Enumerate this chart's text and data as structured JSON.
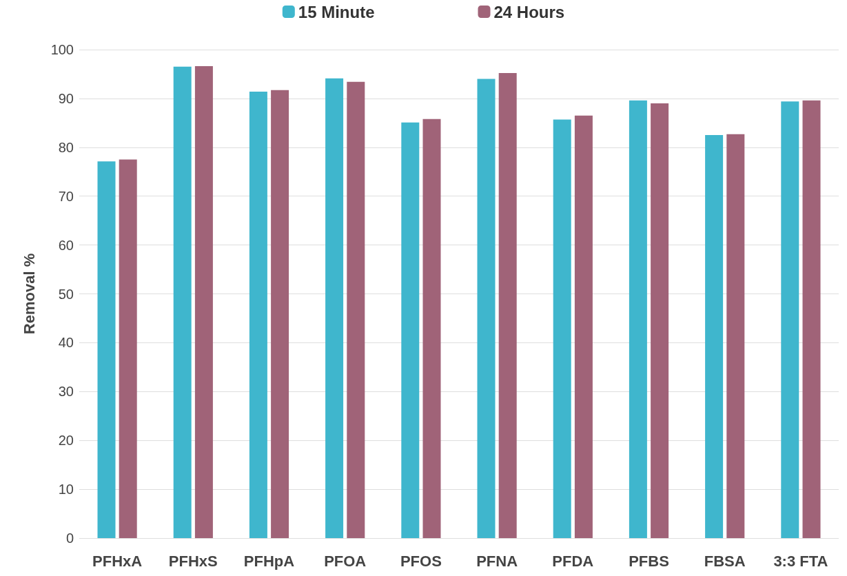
{
  "chart_data": {
    "type": "bar",
    "ylabel": "Removal %",
    "categories": [
      "PFHxA",
      "PFHxS",
      "PFHpA",
      "PFOA",
      "PFOS",
      "PFNA",
      "PFDA",
      "PFBS",
      "FBSA",
      "3:3 FTA"
    ],
    "series": [
      {
        "name": "15 Minute",
        "color": "#3fb6cd",
        "values": [
          77.1,
          96.5,
          91.4,
          94.1,
          85.1,
          94.0,
          85.7,
          89.6,
          82.5,
          89.4
        ]
      },
      {
        "name": "24 Hours",
        "color": "#a06378",
        "values": [
          77.5,
          96.6,
          91.7,
          93.4,
          85.8,
          95.2,
          86.5,
          89.0,
          82.7,
          89.6
        ]
      }
    ],
    "ylim": [
      0,
      100
    ],
    "yticks": [
      0,
      10,
      20,
      30,
      40,
      50,
      60,
      70,
      80,
      90,
      100
    ],
    "grid": "y",
    "legend": "top"
  }
}
